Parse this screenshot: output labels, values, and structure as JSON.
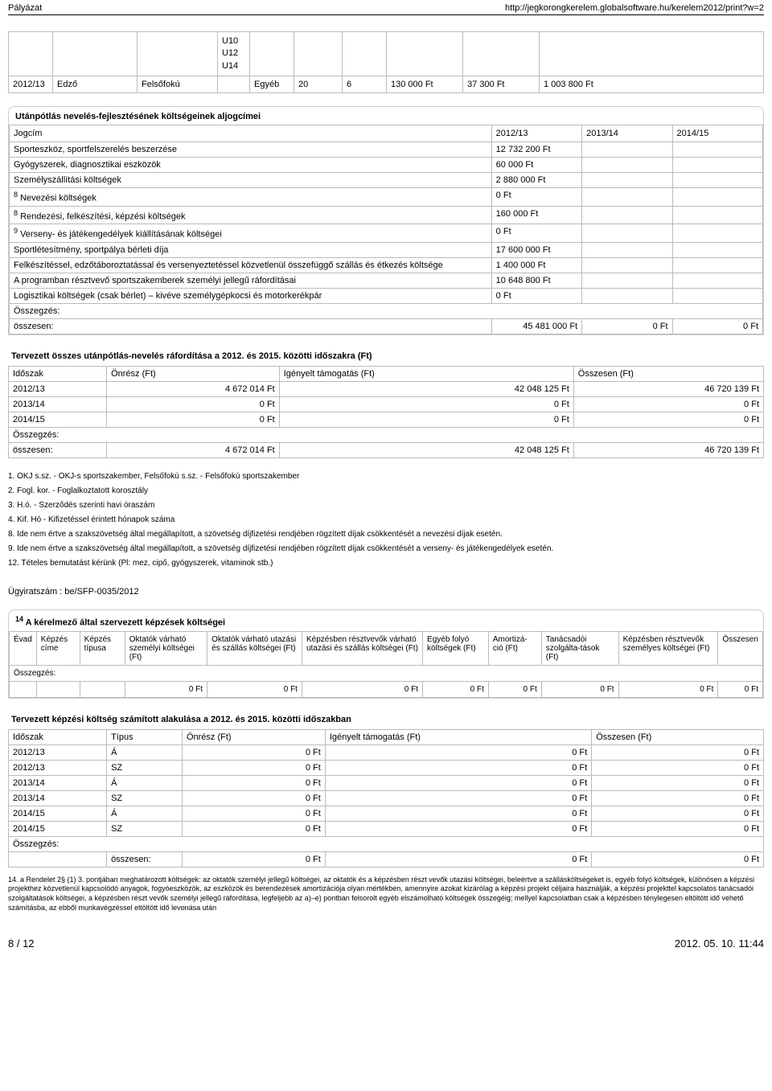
{
  "header": {
    "title": "Pályázat",
    "url": "http://jegkorongkerelem.globalsoftware.hu/kerelem2012/print?w=2"
  },
  "topTable": {
    "uCell": "U10\nU12\nU14",
    "cells": [
      "2012/13",
      "Edző",
      "Felsőfokú",
      "Egyéb",
      "20",
      "6",
      "130 000 Ft",
      "37 300 Ft",
      "1 003 800 Ft"
    ]
  },
  "jogcimSection": {
    "title": "Utánpótlás nevelés-fejlesztésének költségeinek aljogcímei",
    "headers": [
      "Jogcím",
      "2012/13",
      "2013/14",
      "2014/15"
    ],
    "rows": [
      [
        "Sporteszköz, sportfelszerelés beszerzése",
        "12 732 200  Ft",
        "",
        ""
      ],
      [
        "Gyógyszerek, diagnosztikai eszközök",
        "60 000  Ft",
        "",
        ""
      ],
      [
        "Személyszállítási költségek",
        "2 880 000 Ft",
        "",
        ""
      ],
      [
        "<sup>8</sup> Nevezési költségek",
        "0 Ft",
        "",
        ""
      ],
      [
        "<sup>8</sup> Rendezési, felkészítési, képzési költségek",
        "160 000 Ft",
        "",
        ""
      ],
      [
        "<sup>9</sup> Verseny- és játékengedélyek kiállításának költségei",
        "0 Ft",
        "",
        ""
      ],
      [
        "Sportlétesítmény, sportpálya bérleti díja",
        "17 600 000  Ft",
        "",
        ""
      ],
      [
        "Felkészítéssel, edzőtáboroztatással és versenyeztetéssel közvetlenül összefüggő szállás és étkezés költsége",
        "1 400 000 Ft",
        "",
        ""
      ],
      [
        "A programban résztvevő sportszakemberek személyi jellegű ráfordításai",
        "10 648 800  Ft",
        "",
        ""
      ],
      [
        "Logisztikai költségek (csak bérlet) – kivéve személygépkocsi és motorkerékpár",
        "0 Ft",
        "",
        ""
      ]
    ],
    "summaryLabel": "Összegzés:",
    "totalLabel": "összesen:",
    "totals": [
      "45 481 000 Ft",
      "0 Ft",
      "0 Ft"
    ]
  },
  "periodSection": {
    "title": "Tervezett összes utánpótlás-nevelés ráfordítása a 2012. és 2015. közötti időszakra (Ft)",
    "headers": [
      "Időszak",
      "Önrész (Ft)",
      "Igényelt támogatás (Ft)",
      "Összesen (Ft)"
    ],
    "rows": [
      [
        "2012/13",
        "4 672 014 Ft",
        "42 048 125 Ft",
        "46 720 139 Ft"
      ],
      [
        "2013/14",
        "0 Ft",
        "0 Ft",
        "0 Ft"
      ],
      [
        "2014/15",
        "0 Ft",
        "0 Ft",
        "0 Ft"
      ]
    ],
    "summaryLabel": "Összegzés:",
    "totalLabel": "összesen:",
    "totals": [
      "4 672 014 Ft",
      "42 048 125 Ft",
      "46 720 139 Ft"
    ]
  },
  "footnotes": [
    "1. OKJ s.sz. - OKJ-s sportszakember, Felsőfokú s.sz. - Felsőfokú sportszakember",
    "2. Fogl. kor. - Foglalkoztatott korosztály",
    "3. H.ó. - Szerződés szerinti havi óraszám",
    "4. Kif. Hó - Kifizetéssel érintett hónapok száma",
    "8. Ide nem értve a szakszövetség által megállapított, a szövetség díjfizetési rendjében rögzített díjak csökkentését a nevezési díjak esetén.",
    "9. Ide nem értve a szakszövetség által megállapított, a szövetség díjfizetési rendjében rögzített díjak csökkentését a verseny- és játékengedélyek esetén.",
    "12. Tételes bemutatást kérünk (Pl: mez, cipő, gyógyszerek, vitaminok stb.)"
  ],
  "ugyirat": "Ügyiratszám : be/SFP-0035/2012",
  "kepzesSection": {
    "title": "<sup>14</sup> A kérelmező által szervezett képzések költségei",
    "headers": [
      "Évad",
      "Képzés címe",
      "Képzés típusa",
      "Oktatók várható személyi költségei (Ft)",
      "Oktatók várható utazási és szállás költségei (Ft)",
      "Képzésben résztvevők várható utazási és szállás költségei (Ft)",
      "Egyéb folyó költségek (Ft)",
      "Amortizá-ció (Ft)",
      "Tanácsadói szolgálta-tások (Ft)",
      "Képzésben résztvevők személyes költségei (Ft)",
      "Összesen"
    ],
    "summaryLabel": "Összegzés:",
    "totals": [
      "0 Ft",
      "0 Ft",
      "0 Ft",
      "0 Ft",
      "0 Ft",
      "0 Ft",
      "0 Ft",
      "0 Ft"
    ]
  },
  "kepzesPeriod": {
    "title": "Tervezett képzési költség számított alakulása a 2012. és 2015. közötti időszakban",
    "headers": [
      "Időszak",
      "Típus",
      "Önrész (Ft)",
      "Igényelt támogatás (Ft)",
      "Összesen (Ft)"
    ],
    "rows": [
      [
        "2012/13",
        "Á",
        "0 Ft",
        "0 Ft",
        "0 Ft"
      ],
      [
        "2012/13",
        "SZ",
        "0 Ft",
        "0 Ft",
        "0 Ft"
      ],
      [
        "2013/14",
        "Á",
        "0 Ft",
        "0 Ft",
        "0 Ft"
      ],
      [
        "2013/14",
        "SZ",
        "0 Ft",
        "0 Ft",
        "0 Ft"
      ],
      [
        "2014/15",
        "Á",
        "0 Ft",
        "0 Ft",
        "0 Ft"
      ],
      [
        "2014/15",
        "SZ",
        "0 Ft",
        "0 Ft",
        "0 Ft"
      ]
    ],
    "summaryLabel": "Összegzés:",
    "totalLabel": "összesen:",
    "totals": [
      "0 Ft",
      "0 Ft",
      "0 Ft"
    ]
  },
  "note14": "14. a Rendelet 2§ (1) 3. pontjában meghatározott költségek: az oktatók személyi jellegű költségei, az oktatók és a képzésben részt vevők utazási költségei, beleértve a szállásköltségeket is, egyéb folyó költségek, különösen a képzési projekthez közvetlenül kapcsolódó anyagok, fogyóeszközök, az eszközök és berendezések amortizációja olyan mértékben, amennyire azokat kizárólag a képzési projekt céljaira használják, a képzési projekttel kapcsolatos tanácsadói szolgáltatások költségei, a képzésben részt vevők személyi jellegű ráfordítása, legfeljebb az a)–e) pontban felsorolt egyéb elszámolható költségek összegéig; mellyel kapcsolatban csak a képzésben ténylegesen eltöltött idő vehető számításba, az ebből munkavégzéssel eltöltött idő levonása után",
  "footer": {
    "page": "8 / 12",
    "datetime": "2012. 05. 10. 11:44"
  }
}
